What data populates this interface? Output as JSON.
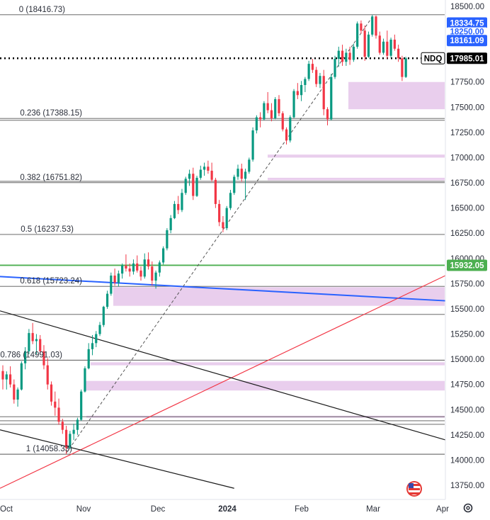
{
  "chart_data": {
    "type": "candlestick",
    "symbol": "NDQ",
    "last_price": 17985.01,
    "ylim": [
      13620,
      18560
    ],
    "y_ticks": [
      13750,
      14000,
      14250,
      14500,
      14750,
      15000,
      15250,
      15500,
      15750,
      16000,
      16250,
      16500,
      16750,
      17000,
      17250,
      17500,
      17750,
      18000,
      18250,
      18500
    ],
    "y_tick_labels": [
      "13750.00",
      "14000.00",
      "14250.00",
      "14500.00",
      "14750.00",
      "15000.00",
      "15250.00",
      "15500.00",
      "15750.00",
      "16000.00",
      "16250.00",
      "16500.00",
      "16750.00",
      "17000.00",
      "17250.00",
      "17500.00",
      "17750.00",
      "18000.00",
      "18250.00",
      "18500.00"
    ],
    "x_labels": [
      "Oct",
      "Nov",
      "Dec",
      "2024",
      "Feb",
      "Mar",
      "Apr"
    ],
    "fib_levels": [
      {
        "ratio": "0",
        "label": "0 (18416.73)",
        "price": 18416.73
      },
      {
        "ratio": "0.236",
        "label": "0.236 (17388.15)",
        "price": 17388.15
      },
      {
        "ratio": "0.382",
        "label": "0.382 (16751.82)",
        "price": 16751.82
      },
      {
        "ratio": "0.5",
        "label": "0.5 (16237.53)",
        "price": 16237.53
      },
      {
        "ratio": "0.618",
        "label": "0.618 (15723.24)",
        "price": 15723.24
      },
      {
        "ratio": "0.786",
        "label": "0.786 (14991.03)",
        "price": 14991.03
      },
      {
        "ratio": "1",
        "label": "1 (14058.33)",
        "price": 14058.33
      }
    ],
    "extra_h_lines": [
      17370,
      16765,
      15445,
      14430,
      14390,
      14355
    ],
    "price_badges": [
      {
        "label": "18334.75",
        "price": 18334.75,
        "color": "#2962ff"
      },
      {
        "label": "18250.00",
        "price": 18250.0,
        "color": "#2962ff"
      },
      {
        "label": "18161.09",
        "price": 18161.09,
        "color": "#2962ff"
      },
      {
        "label": "15932.05",
        "price": 15932.05,
        "color": "#4caf50"
      }
    ],
    "zones": [
      {
        "from": 17480,
        "to": 17750
      },
      {
        "from": 17000,
        "to": 17030
      },
      {
        "from": 16775,
        "to": 16800
      },
      {
        "from": 15530,
        "to": 15715
      },
      {
        "from": 14940,
        "to": 14970
      },
      {
        "from": 14690,
        "to": 14785
      },
      {
        "from": 14420,
        "to": 14440
      },
      {
        "from": 17960,
        "to": 17985
      }
    ],
    "candles": [
      [
        0,
        14883,
        14940,
        14700,
        14800
      ],
      [
        1,
        14800,
        14880,
        14700,
        14850
      ],
      [
        2,
        14850,
        14930,
        14720,
        14750
      ],
      [
        3,
        14750,
        14800,
        14560,
        14600
      ],
      [
        4,
        14600,
        14720,
        14530,
        14700
      ],
      [
        5,
        14700,
        14980,
        14690,
        14960
      ],
      [
        6,
        14960,
        15120,
        14900,
        15080
      ],
      [
        7,
        15080,
        15300,
        15050,
        15260
      ],
      [
        8,
        15260,
        15360,
        15150,
        15180
      ],
      [
        9,
        15180,
        15250,
        15050,
        15200
      ],
      [
        10,
        15200,
        15240,
        15050,
        15080
      ],
      [
        11,
        15080,
        15140,
        14900,
        14940
      ],
      [
        12,
        14940,
        15010,
        14700,
        14750
      ],
      [
        13,
        14750,
        14780,
        14540,
        14580
      ],
      [
        14,
        14580,
        14680,
        14440,
        14520
      ],
      [
        15,
        14520,
        14610,
        14350,
        14380
      ],
      [
        16,
        14380,
        14410,
        14260,
        14300
      ],
      [
        17,
        14300,
        14340,
        14058,
        14120
      ],
      [
        18,
        14120,
        14290,
        14110,
        14260
      ],
      [
        19,
        14260,
        14360,
        14200,
        14300
      ],
      [
        20,
        14300,
        14420,
        14250,
        14400
      ],
      [
        21,
        14400,
        14700,
        14390,
        14680
      ],
      [
        22,
        14680,
        14930,
        14670,
        14910
      ],
      [
        23,
        14910,
        15160,
        14900,
        15100
      ],
      [
        24,
        15100,
        15240,
        15040,
        15160
      ],
      [
        25,
        15160,
        15280,
        15120,
        15250
      ],
      [
        26,
        15250,
        15370,
        15230,
        15340
      ],
      [
        27,
        15340,
        15530,
        15320,
        15520
      ],
      [
        28,
        15520,
        15680,
        15500,
        15650
      ],
      [
        29,
        15650,
        15860,
        15630,
        15830
      ],
      [
        30,
        15830,
        15900,
        15730,
        15760
      ],
      [
        31,
        15760,
        15880,
        15720,
        15850
      ],
      [
        32,
        15850,
        15950,
        15800,
        15930
      ],
      [
        33,
        15930,
        16040,
        15870,
        15900
      ],
      [
        34,
        15900,
        15950,
        15820,
        15870
      ],
      [
        35,
        15870,
        15990,
        15840,
        15950
      ],
      [
        36,
        15950,
        16030,
        15860,
        15880
      ],
      [
        37,
        15880,
        15920,
        15780,
        15820
      ],
      [
        38,
        15820,
        16050,
        15800,
        15990
      ],
      [
        39,
        15990,
        16060,
        15890,
        15920
      ],
      [
        40,
        15920,
        15970,
        15730,
        15780
      ],
      [
        41,
        15780,
        15880,
        15700,
        15860
      ],
      [
        42,
        15860,
        15980,
        15820,
        15960
      ],
      [
        43,
        15960,
        16120,
        15940,
        16100
      ],
      [
        44,
        16100,
        16300,
        16080,
        16280
      ],
      [
        45,
        16280,
        16430,
        16250,
        16400
      ],
      [
        46,
        16400,
        16570,
        16390,
        16540
      ],
      [
        47,
        16540,
        16620,
        16440,
        16480
      ],
      [
        48,
        16480,
        16690,
        16460,
        16650
      ],
      [
        49,
        16650,
        16810,
        16630,
        16790
      ],
      [
        50,
        16790,
        16880,
        16720,
        16840
      ],
      [
        51,
        16840,
        16900,
        16580,
        16620
      ],
      [
        52,
        16620,
        16820,
        16610,
        16800
      ],
      [
        53,
        16800,
        16920,
        16780,
        16880
      ],
      [
        54,
        16880,
        16950,
        16820,
        16910
      ],
      [
        55,
        16910,
        16970,
        16840,
        16870
      ],
      [
        56,
        16870,
        16950,
        16760,
        16780
      ],
      [
        57,
        16780,
        16800,
        16500,
        16540
      ],
      [
        58,
        16540,
        16580,
        16320,
        16360
      ],
      [
        59,
        16360,
        16420,
        16260,
        16300
      ],
      [
        60,
        16300,
        16520,
        16280,
        16500
      ],
      [
        61,
        16500,
        16680,
        16480,
        16650
      ],
      [
        62,
        16650,
        16830,
        16630,
        16810
      ],
      [
        63,
        16810,
        16930,
        16780,
        16890
      ],
      [
        64,
        16890,
        16940,
        16760,
        16790
      ],
      [
        65,
        16790,
        16890,
        16580,
        16860
      ],
      [
        66,
        16860,
        17000,
        16840,
        16980
      ],
      [
        67,
        16980,
        17300,
        16960,
        17270
      ],
      [
        68,
        17270,
        17420,
        17240,
        17400
      ],
      [
        69,
        17400,
        17450,
        17300,
        17380
      ],
      [
        70,
        17380,
        17560,
        17370,
        17540
      ],
      [
        71,
        17540,
        17650,
        17440,
        17470
      ],
      [
        72,
        17470,
        17540,
        17360,
        17390
      ],
      [
        73,
        17390,
        17600,
        17380,
        17580
      ],
      [
        74,
        17580,
        17620,
        17410,
        17440
      ],
      [
        75,
        17440,
        17460,
        17260,
        17280
      ],
      [
        76,
        17280,
        17300,
        17130,
        17170
      ],
      [
        77,
        17170,
        17420,
        17150,
        17400
      ],
      [
        78,
        17400,
        17680,
        17390,
        17660
      ],
      [
        79,
        17660,
        17740,
        17580,
        17620
      ],
      [
        80,
        17620,
        17760,
        17560,
        17720
      ],
      [
        81,
        17720,
        17800,
        17650,
        17780
      ],
      [
        82,
        17780,
        17960,
        17760,
        17930
      ],
      [
        83,
        17930,
        17980,
        17840,
        17870
      ],
      [
        84,
        17870,
        17900,
        17700,
        17730
      ],
      [
        85,
        17730,
        17840,
        17690,
        17810
      ],
      [
        86,
        17810,
        17870,
        17420,
        17480
      ],
      [
        87,
        17480,
        17500,
        17320,
        17380
      ],
      [
        88,
        17380,
        17830,
        17370,
        17800
      ],
      [
        89,
        17800,
        18010,
        17780,
        17980
      ],
      [
        90,
        17980,
        18100,
        17900,
        18060
      ],
      [
        91,
        18060,
        18120,
        17910,
        17950
      ],
      [
        92,
        17950,
        18080,
        17910,
        18040
      ],
      [
        93,
        18040,
        18100,
        17920,
        17970
      ],
      [
        94,
        17970,
        18130,
        17950,
        18100
      ],
      [
        95,
        18100,
        18350,
        18080,
        18330
      ],
      [
        96,
        18330,
        18360,
        18230,
        18260
      ],
      [
        97,
        18260,
        18310,
        17960,
        18000
      ],
      [
        98,
        18000,
        18250,
        17990,
        18220
      ],
      [
        99,
        18220,
        18416,
        18200,
        18400
      ],
      [
        100,
        18400,
        18410,
        18180,
        18210
      ],
      [
        101,
        18210,
        18250,
        18020,
        18040
      ],
      [
        102,
        18040,
        18180,
        18020,
        18150
      ],
      [
        103,
        18150,
        18260,
        17980,
        18010
      ],
      [
        104,
        18010,
        18190,
        17990,
        18170
      ],
      [
        105,
        18170,
        18220,
        18060,
        18080
      ],
      [
        106,
        18080,
        18120,
        17950,
        17985
      ],
      [
        107,
        17985,
        18010,
        17760,
        17800
      ],
      [
        108,
        17800,
        18000,
        17790,
        17985
      ]
    ]
  },
  "ui": {
    "settings_icon": "gear-icon",
    "flag_icon": "us-flag-icon"
  }
}
